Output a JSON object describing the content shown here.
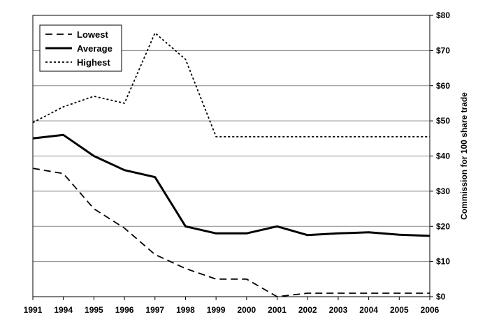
{
  "chart_data": {
    "type": "line",
    "categories": [
      "1991",
      "1994",
      "1995",
      "1996",
      "1997",
      "1998",
      "1999",
      "2000",
      "2001",
      "2002",
      "2003",
      "2004",
      "2005",
      "2006"
    ],
    "series": [
      {
        "name": "Lowest",
        "style": "dashed",
        "values": [
          36.5,
          35,
          25,
          19.5,
          12,
          8,
          5,
          5,
          0,
          1,
          1,
          1,
          1,
          1
        ]
      },
      {
        "name": "Average",
        "style": "solid",
        "values": [
          45,
          46,
          40,
          36,
          34,
          20,
          18,
          18,
          20,
          17.5,
          18,
          18.3,
          17.6,
          17.3
        ]
      },
      {
        "name": "Highest",
        "style": "dotted",
        "values": [
          49.5,
          54,
          57,
          55,
          75,
          67.5,
          45.5,
          45.5,
          45.5,
          45.5,
          45.5,
          45.5,
          45.5,
          45.5
        ]
      }
    ],
    "y_ticks": [
      "$0",
      "$10",
      "$20",
      "$30",
      "$40",
      "$50",
      "$60",
      "$70",
      "$80"
    ],
    "ylim": [
      0,
      80
    ],
    "ylabel": "Commission for 100 share trade",
    "y_axis_side": "right",
    "grid": "horizontal",
    "legend_position": "top-left",
    "colors": {
      "line": "#000000",
      "grid": "#888888",
      "background": "#ffffff"
    }
  }
}
